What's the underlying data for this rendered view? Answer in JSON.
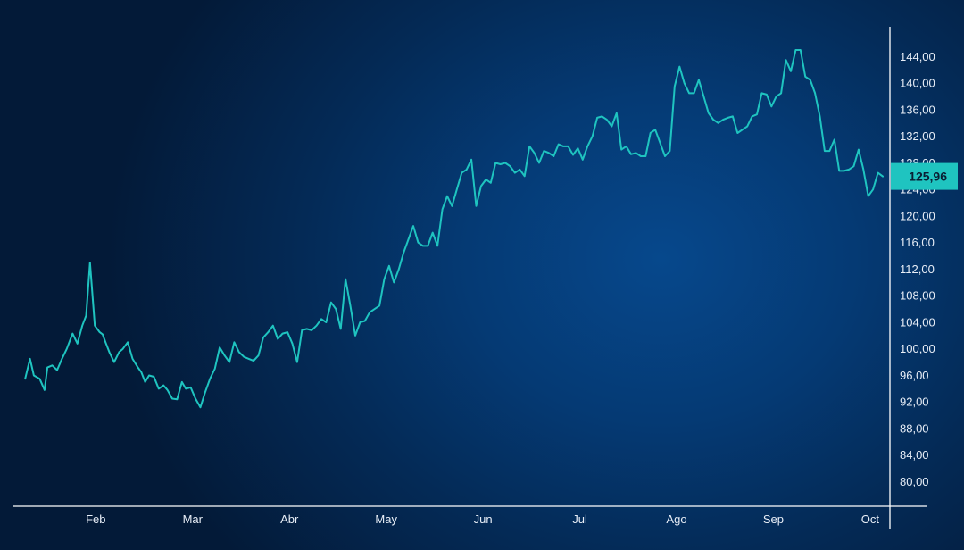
{
  "chart_data": {
    "type": "line",
    "title": "",
    "xlabel": "",
    "ylabel": "",
    "legend": "none",
    "grid": false,
    "colors": {
      "line": "#1fc4c0",
      "axis": "#ffffff",
      "last_value_badge": "#1fc4c0"
    },
    "x_tick_labels": [
      "Feb",
      "Mar",
      "Abr",
      "May",
      "Jun",
      "Jul",
      "Ago",
      "Sep",
      "Oct"
    ],
    "x_tick_positions": [
      1,
      2,
      3,
      4,
      5,
      6,
      7,
      8,
      9
    ],
    "xlim": [
      0.25,
      9.25
    ],
    "y_tick_labels": [
      "80,00",
      "84,00",
      "88,00",
      "92,00",
      "96,00",
      "100,00",
      "104,00",
      "108,00",
      "112,00",
      "116,00",
      "120,00",
      "124,00",
      "128,00",
      "132,00",
      "136,00",
      "140,00",
      "144,00"
    ],
    "y_tick_values": [
      80,
      84,
      88,
      92,
      96,
      100,
      104,
      108,
      112,
      116,
      120,
      124,
      128,
      132,
      136,
      140,
      144
    ],
    "ylim": [
      76.3,
      148.5
    ],
    "last_value": 125.96,
    "last_value_label": "125,96",
    "series": [
      {
        "x": [
          0.27,
          0.32,
          0.36,
          0.42,
          0.47,
          0.5,
          0.55,
          0.6,
          0.65,
          0.7,
          0.76,
          0.81,
          0.86,
          0.9,
          0.94,
          0.99,
          1.04,
          1.07,
          1.1,
          1.14,
          1.19,
          1.24,
          1.28,
          1.33,
          1.38,
          1.43,
          1.47,
          1.51,
          1.55,
          1.6,
          1.65,
          1.7,
          1.74,
          1.79,
          1.84,
          1.89,
          1.93,
          1.98,
          2.03,
          2.08,
          2.13,
          2.18,
          2.23,
          2.28,
          2.33,
          2.38,
          2.43,
          2.48,
          2.53,
          2.58,
          2.63,
          2.68,
          2.73,
          2.78,
          2.83,
          2.88,
          2.93,
          2.98,
          3.03,
          3.08,
          3.13,
          3.18,
          3.23,
          3.28,
          3.33,
          3.38,
          3.43,
          3.48,
          3.53,
          3.58,
          3.63,
          3.68,
          3.73,
          3.78,
          3.83,
          3.88,
          3.93,
          3.98,
          4.03,
          4.08,
          4.13,
          4.18,
          4.23,
          4.28,
          4.33,
          4.38,
          4.43,
          4.48,
          4.53,
          4.58,
          4.63,
          4.68,
          4.73,
          4.78,
          4.83,
          4.88,
          4.93,
          4.98,
          5.03,
          5.08,
          5.13,
          5.18,
          5.23,
          5.28,
          5.33,
          5.38,
          5.43,
          5.48,
          5.53,
          5.58,
          5.63,
          5.68,
          5.73,
          5.78,
          5.83,
          5.88,
          5.93,
          5.98,
          6.03,
          6.08,
          6.13,
          6.18,
          6.23,
          6.28,
          6.33,
          6.38,
          6.43,
          6.48,
          6.53,
          6.58,
          6.63,
          6.68,
          6.73,
          6.78,
          6.83,
          6.88,
          6.93,
          6.98,
          7.03,
          7.08,
          7.13,
          7.18,
          7.23,
          7.28,
          7.33,
          7.38,
          7.43,
          7.48,
          7.53,
          7.58,
          7.63,
          7.68,
          7.73,
          7.78,
          7.83,
          7.88,
          7.93,
          7.98,
          8.03,
          8.08,
          8.13,
          8.18,
          8.23,
          8.28,
          8.33,
          8.38,
          8.43,
          8.48,
          8.53,
          8.58,
          8.63,
          8.68,
          8.73,
          8.78,
          8.83,
          8.88,
          8.93,
          8.98,
          9.03,
          9.08,
          9.13
        ],
        "values": [
          95.5,
          98.5,
          96.0,
          95.5,
          93.8,
          97.2,
          97.5,
          96.8,
          98.5,
          100.0,
          102.3,
          100.8,
          103.5,
          105.0,
          113.0,
          103.5,
          102.5,
          102.2,
          101.0,
          99.5,
          98.0,
          99.5,
          100.0,
          101.0,
          98.5,
          97.3,
          96.5,
          95.0,
          96.0,
          95.8,
          94.0,
          94.5,
          93.8,
          92.5,
          92.4,
          95.0,
          94.0,
          94.2,
          92.5,
          91.2,
          93.5,
          95.5,
          97.0,
          100.2,
          99.0,
          98.0,
          101.0,
          99.5,
          98.8,
          98.5,
          98.2,
          99.0,
          101.7,
          102.5,
          103.5,
          101.5,
          102.3,
          102.5,
          100.8,
          98.0,
          102.8,
          103.0,
          102.8,
          103.5,
          104.5,
          104.0,
          107.0,
          106.0,
          103.0,
          110.5,
          106.5,
          102.0,
          104.0,
          104.2,
          105.5,
          106.0,
          106.5,
          110.5,
          112.5,
          110.0,
          112.0,
          114.5,
          116.5,
          118.5,
          116.0,
          115.5,
          115.5,
          117.5,
          115.5,
          121.0,
          123.0,
          121.5,
          124.0,
          126.5,
          127.0,
          128.5,
          121.5,
          124.5,
          125.5,
          125.0,
          128.0,
          127.8,
          128.0,
          127.5,
          126.5,
          127.0,
          126.0,
          130.5,
          129.5,
          128.0,
          129.8,
          129.5,
          129.0,
          130.8,
          130.5,
          130.5,
          129.2,
          130.2,
          128.5,
          130.5,
          132.0,
          134.8,
          135.0,
          134.5,
          133.5,
          135.5,
          130.0,
          130.5,
          129.3,
          129.5,
          129.0,
          129.0,
          132.5,
          133.0,
          131.0,
          129.0,
          129.8,
          139.5,
          142.5,
          140.0,
          138.5,
          138.5,
          140.5,
          138.0,
          135.5,
          134.5,
          134.0,
          134.5,
          134.8,
          135.0,
          132.5,
          133.0,
          133.5,
          135.0,
          135.3,
          138.5,
          138.3,
          136.5,
          138.0,
          138.5,
          143.5,
          141.8,
          145.0,
          145.0,
          141.0,
          140.5,
          138.5,
          135.0,
          129.8,
          129.8,
          131.5,
          126.8,
          126.8,
          127.0,
          127.5,
          130.0,
          127.0,
          123.0,
          124.0,
          126.5,
          125.96
        ]
      }
    ]
  }
}
